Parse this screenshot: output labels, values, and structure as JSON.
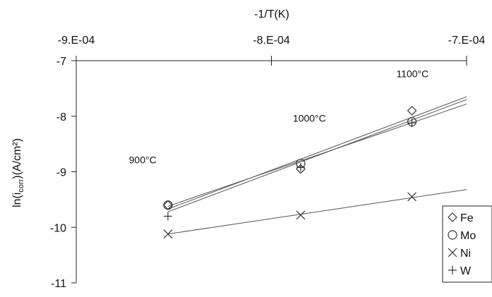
{
  "chart_data": {
    "type": "scatter",
    "xlabel": "-1/T(K)",
    "ylabel_main": "ln(i",
    "ylabel_sub": "corr",
    "ylabel_tail": ")(A/cm²)",
    "xlim": [
      -0.0009,
      -0.0007
    ],
    "ylim": [
      -11,
      -7
    ],
    "x_axis_position": "top",
    "x_ticks": [
      -0.0009,
      -0.0008,
      -0.0007
    ],
    "x_tick_labels": [
      "-9.E-04",
      "-8.E-04",
      "-7.E-04"
    ],
    "y_ticks": [
      -7,
      -8,
      -9,
      -10,
      -11
    ],
    "y_tick_labels": [
      "-7",
      "-8",
      "-9",
      "-10",
      "-11"
    ],
    "grid": false,
    "legend_position": "bottom-right",
    "annotations": [
      {
        "text": "900°C",
        "x": -0.000873,
        "y": -8.85
      },
      {
        "text": "1000°C",
        "x": -0.000789,
        "y": -8.1
      },
      {
        "text": "1100°C",
        "x": -0.000736,
        "y": -7.3
      }
    ],
    "series": [
      {
        "name": "Fe",
        "marker": "diamond",
        "x": [
          -0.000853,
          -0.000785,
          -0.000728
        ],
        "y": [
          -9.6,
          -8.95,
          -7.9
        ],
        "fit": [
          [
            -0.000853,
            -9.67
          ],
          [
            -0.0007,
            -7.65
          ]
        ]
      },
      {
        "name": "Mo",
        "marker": "circle",
        "x": [
          -0.000853,
          -0.000785,
          -0.000728
        ],
        "y": [
          -9.6,
          -8.85,
          -8.1
        ],
        "fit": [
          [
            -0.000853,
            -9.62
          ],
          [
            -0.0007,
            -7.78
          ]
        ]
      },
      {
        "name": "Ni",
        "marker": "x",
        "x": [
          -0.000853,
          -0.000785,
          -0.000728
        ],
        "y": [
          -10.12,
          -9.78,
          -9.45
        ],
        "fit": [
          [
            -0.000853,
            -10.12
          ],
          [
            -0.0007,
            -9.32
          ]
        ]
      },
      {
        "name": "W",
        "marker": "plus",
        "x": [
          -0.000853,
          -0.000785,
          -0.000728
        ],
        "y": [
          -9.8,
          -8.92,
          -8.12
        ],
        "fit": [
          [
            -0.000853,
            -9.72
          ],
          [
            -0.0007,
            -7.7
          ]
        ]
      }
    ]
  }
}
